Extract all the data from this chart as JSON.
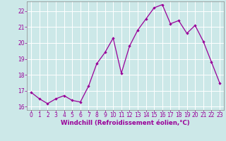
{
  "x": [
    0,
    1,
    2,
    3,
    4,
    5,
    6,
    7,
    8,
    9,
    10,
    11,
    12,
    13,
    14,
    15,
    16,
    17,
    18,
    19,
    20,
    21,
    22,
    23
  ],
  "y": [
    16.9,
    16.5,
    16.2,
    16.5,
    16.7,
    16.4,
    16.3,
    17.3,
    18.7,
    19.4,
    20.3,
    18.1,
    19.8,
    20.8,
    21.5,
    22.2,
    22.4,
    21.2,
    21.4,
    20.6,
    21.1,
    20.1,
    18.8,
    17.5
  ],
  "line_color": "#990099",
  "marker": "D",
  "marker_size": 2.2,
  "background_color": "#cce8e8",
  "grid_color": "#ffffff",
  "xlabel": "Windchill (Refroidissement éolien,°C)",
  "xlabel_color": "#990099",
  "tick_color": "#990099",
  "spine_color": "#888888",
  "ylim": [
    15.8,
    22.6
  ],
  "xlim": [
    -0.5,
    23.5
  ],
  "yticks": [
    16,
    17,
    18,
    19,
    20,
    21,
    22
  ],
  "xticks": [
    0,
    1,
    2,
    3,
    4,
    5,
    6,
    7,
    8,
    9,
    10,
    11,
    12,
    13,
    14,
    15,
    16,
    17,
    18,
    19,
    20,
    21,
    22,
    23
  ],
  "tick_fontsize": 5.5,
  "xlabel_fontsize": 6.2
}
